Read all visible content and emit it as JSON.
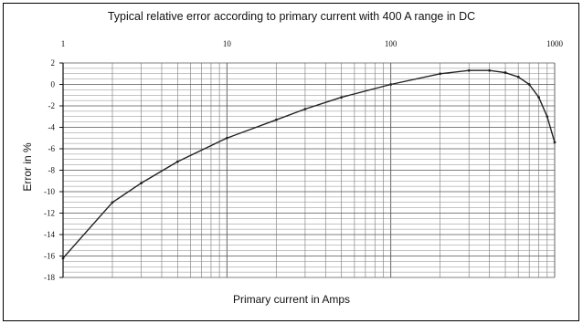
{
  "chart_data": {
    "type": "line",
    "title": "Typical relative error according to primary current with  400 A range in DC",
    "xlabel": "Primary current in Amps",
    "ylabel": "Error in %",
    "x_scale": "log",
    "xlim": [
      1,
      1000
    ],
    "ylim": [
      -18,
      2
    ],
    "x_ticks": [
      1,
      10,
      100,
      1000
    ],
    "y_ticks": [
      2,
      0,
      -2,
      -4,
      -6,
      -8,
      -10,
      -12,
      -14,
      -16,
      -18
    ],
    "x_tick_labels": [
      "1",
      "10",
      "100",
      "1000"
    ],
    "y_tick_labels": [
      "2",
      "0",
      "-2",
      "-4",
      "-6",
      "-8",
      "-10",
      "-12",
      "-14",
      "-16",
      "-18"
    ],
    "grid": true,
    "line_color": "#222222",
    "series": [
      {
        "x": [
          1,
          2,
          3,
          5,
          10,
          20,
          30,
          50,
          100,
          200,
          300,
          400,
          500,
          600,
          700,
          800,
          900,
          1000
        ],
        "values": [
          -16.2,
          -11,
          -9.2,
          -7.2,
          -5,
          -3.3,
          -2.3,
          -1.2,
          0,
          1,
          1.3,
          1.3,
          1.1,
          0.7,
          0,
          -1.2,
          -3,
          -5.4
        ]
      }
    ]
  }
}
